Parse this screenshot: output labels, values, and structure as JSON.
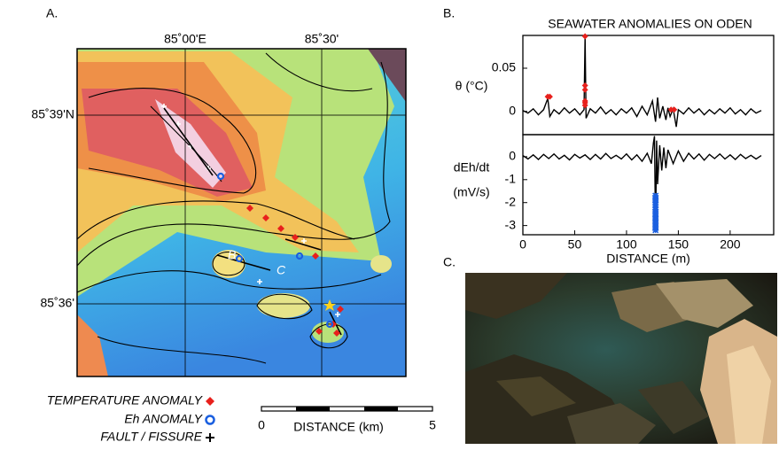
{
  "figure": {
    "panel_a": "A.",
    "panel_b": "B.",
    "panel_c": "C.",
    "map": {
      "lon_labels": [
        "85˚00'E",
        "85˚30'"
      ],
      "lat_labels": [
        "85˚39'N",
        "85˚36'"
      ],
      "site_labels": [
        "B",
        "C"
      ],
      "legend": [
        "TEMPERATURE ANOMALY",
        "Eh ANOMALY",
        "FAULT / FISSURE"
      ],
      "scale": {
        "start": "0",
        "label": "DISTANCE (km)",
        "end": "5"
      }
    }
  },
  "chart_data": [
    {
      "type": "line",
      "title": "SEAWATER ANOMALIES ON ODEN",
      "ylabel": [
        "θ (°C)"
      ],
      "xlim": [
        0,
        242
      ],
      "ylim": [
        -0.027,
        0.088
      ],
      "yticks": [
        0,
        0.05
      ],
      "series": [
        {
          "mode": "line",
          "color": "#000000",
          "x": [
            0,
            5,
            10,
            15,
            20,
            24,
            26,
            30,
            35,
            40,
            45,
            50,
            55,
            59,
            60,
            61,
            65,
            70,
            75,
            80,
            85,
            90,
            95,
            100,
            105,
            110,
            115,
            120,
            125,
            128,
            130,
            132,
            135,
            138,
            140,
            142,
            145,
            148,
            150,
            155,
            160,
            165,
            170,
            175,
            180,
            185,
            190,
            195,
            200,
            205,
            210,
            215,
            220,
            225,
            230
          ],
          "values": [
            0.001,
            -0.002,
            0.003,
            -0.004,
            0.002,
            0.015,
            -0.006,
            0.002,
            -0.003,
            0.004,
            -0.002,
            0.003,
            -0.004,
            0.002,
            0.088,
            -0.008,
            0.003,
            -0.002,
            0.005,
            -0.003,
            0.002,
            -0.004,
            0.003,
            -0.002,
            0.004,
            -0.006,
            0.006,
            -0.004,
            0.012,
            -0.012,
            0.016,
            -0.008,
            0.006,
            -0.01,
            0.004,
            -0.006,
            0.003,
            -0.018,
            0.002,
            -0.003,
            0.004,
            -0.002,
            0.003,
            -0.004,
            0.002,
            -0.003,
            0.003,
            -0.002,
            0.004,
            -0.003,
            0.002,
            -0.004,
            0.003,
            -0.002,
            0.001
          ]
        },
        {
          "mode": "markers",
          "marker": "diamond",
          "color": "#e8201c",
          "x": [
            24,
            26,
            60,
            60,
            60,
            60,
            60,
            60,
            143,
            146
          ],
          "values": [
            0.017,
            0.017,
            0.087,
            0.03,
            0.025,
            0.012,
            0.01,
            0.007,
            0.002,
            0.002
          ]
        }
      ]
    },
    {
      "type": "line",
      "ylabel": [
        "dEh/dt",
        "(mV/s)"
      ],
      "xlabel": "DISTANCE (m)",
      "xlim": [
        0,
        242
      ],
      "ylim": [
        -3.4,
        0.96
      ],
      "xticks": [
        0,
        50,
        100,
        150,
        200
      ],
      "yticks": [
        0,
        -1,
        -2,
        -3
      ],
      "series": [
        {
          "mode": "line",
          "color": "#000000",
          "x": [
            0,
            5,
            10,
            15,
            20,
            25,
            30,
            35,
            40,
            45,
            50,
            55,
            60,
            65,
            70,
            75,
            80,
            85,
            90,
            95,
            100,
            105,
            110,
            115,
            120,
            124,
            126,
            127,
            128,
            129,
            130,
            132,
            134,
            136,
            138,
            140,
            145,
            150,
            155,
            160,
            165,
            170,
            175,
            180,
            185,
            190,
            195,
            200,
            205,
            210,
            215,
            220,
            225,
            230
          ],
          "values": [
            0.05,
            -0.1,
            0.08,
            -0.12,
            0.1,
            -0.08,
            0.12,
            -0.1,
            0.06,
            -0.14,
            0.1,
            -0.06,
            0.08,
            -0.12,
            0.1,
            -0.1,
            0.14,
            -0.08,
            0.06,
            -0.1,
            0.12,
            -0.14,
            0.08,
            -0.2,
            0.15,
            -0.3,
            0.6,
            0.9,
            -3.3,
            0.7,
            -1.2,
            0.5,
            -0.6,
            0.4,
            -0.5,
            0.3,
            -0.3,
            0.25,
            -0.2,
            0.15,
            -0.1,
            0.12,
            -0.15,
            0.1,
            -0.08,
            0.12,
            -0.1,
            0.08,
            -0.12,
            0.1,
            -0.08,
            0.06,
            -0.1,
            0.05
          ]
        },
        {
          "mode": "markers",
          "marker": "cross",
          "color": "#1a5fe0",
          "x": [
            128,
            128,
            128,
            128,
            128,
            128,
            128,
            128,
            128,
            128,
            128,
            128
          ],
          "values": [
            -1.7,
            -1.85,
            -2.0,
            -2.1,
            -2.2,
            -2.3,
            -2.45,
            -2.6,
            -2.75,
            -2.9,
            -3.05,
            -3.2
          ]
        }
      ]
    }
  ]
}
